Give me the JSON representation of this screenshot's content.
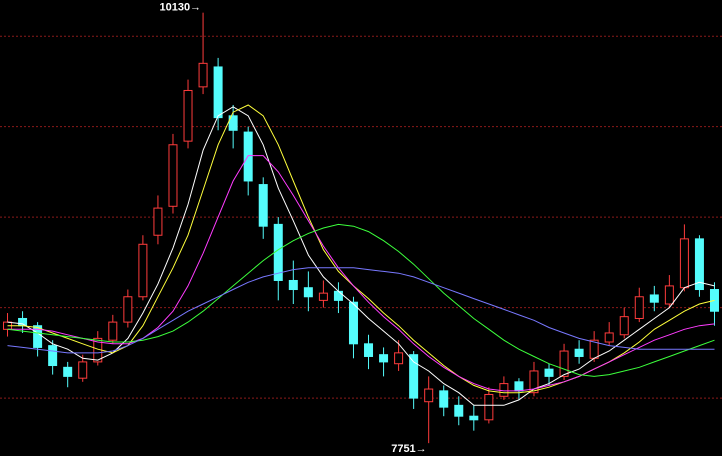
{
  "chart_data": {
    "type": "candlestick",
    "ylim": [
      7680,
      10200
    ],
    "yticks": [
      8000,
      8500,
      9000,
      9500,
      10000
    ],
    "grid": true,
    "up_color": "#ff3c3c",
    "down_color": "#54fcfc",
    "grid_color": "#8b1a1a",
    "candles": [
      [
        8380,
        8470,
        8340,
        8420
      ],
      [
        8440,
        8480,
        8360,
        8400
      ],
      [
        8400,
        8420,
        8230,
        8280
      ],
      [
        8290,
        8320,
        8130,
        8180
      ],
      [
        8170,
        8200,
        8060,
        8120
      ],
      [
        8110,
        8240,
        8090,
        8200
      ],
      [
        8200,
        8370,
        8180,
        8330
      ],
      [
        8320,
        8460,
        8300,
        8420
      ],
      [
        8420,
        8600,
        8390,
        8560
      ],
      [
        8560,
        8900,
        8540,
        8850
      ],
      [
        8900,
        9120,
        8850,
        9050
      ],
      [
        9060,
        9460,
        9020,
        9400
      ],
      [
        9420,
        9760,
        9380,
        9700
      ],
      [
        9720,
        10130,
        9680,
        9850
      ],
      [
        9830,
        9880,
        9480,
        9550
      ],
      [
        9560,
        9620,
        9380,
        9480
      ],
      [
        9470,
        9500,
        9120,
        9200
      ],
      [
        9180,
        9220,
        8880,
        8950
      ],
      [
        8960,
        9000,
        8540,
        8650
      ],
      [
        8650,
        8760,
        8520,
        8600
      ],
      [
        8610,
        8700,
        8480,
        8560
      ],
      [
        8540,
        8650,
        8500,
        8580
      ],
      [
        8590,
        8640,
        8470,
        8540
      ],
      [
        8530,
        8560,
        8220,
        8300
      ],
      [
        8300,
        8350,
        8160,
        8230
      ],
      [
        8240,
        8280,
        8120,
        8200
      ],
      [
        8190,
        8320,
        8150,
        8250
      ],
      [
        8240,
        8260,
        7940,
        8000
      ],
      [
        7980,
        8120,
        7751,
        8050
      ],
      [
        8040,
        8070,
        7900,
        7950
      ],
      [
        7960,
        8010,
        7850,
        7900
      ],
      [
        7900,
        7960,
        7820,
        7880
      ],
      [
        7880,
        8060,
        7860,
        8020
      ],
      [
        8010,
        8120,
        7990,
        8080
      ],
      [
        8090,
        8110,
        7990,
        8040
      ],
      [
        8030,
        8200,
        8010,
        8150
      ],
      [
        8160,
        8190,
        8070,
        8120
      ],
      [
        8120,
        8300,
        8100,
        8260
      ],
      [
        8270,
        8320,
        8190,
        8230
      ],
      [
        8220,
        8370,
        8200,
        8320
      ],
      [
        8310,
        8420,
        8290,
        8360
      ],
      [
        8350,
        8500,
        8330,
        8450
      ],
      [
        8440,
        8610,
        8420,
        8560
      ],
      [
        8570,
        8620,
        8480,
        8530
      ],
      [
        8520,
        8680,
        8500,
        8620
      ],
      [
        8610,
        8960,
        8590,
        8880
      ],
      [
        8880,
        8900,
        8560,
        8600
      ],
      [
        8600,
        8640,
        8400,
        8480
      ]
    ],
    "lines": [
      {
        "color": "#ffffff",
        "values": [
          8420,
          8410,
          8360,
          8300,
          8270,
          8220,
          8210,
          8250,
          8330,
          8470,
          8630,
          8830,
          9070,
          9370,
          9560,
          9610,
          9560,
          9400,
          9160,
          8980,
          8790,
          8670,
          8590,
          8520,
          8440,
          8370,
          8300,
          8200,
          8150,
          8080,
          8030,
          7960,
          7960,
          7960,
          7990,
          8050,
          8080,
          8130,
          8160,
          8220,
          8260,
          8320,
          8380,
          8440,
          8500,
          8610,
          8640,
          8620
        ]
      },
      {
        "color": "#ffff3c",
        "values": [
          8400,
          8400,
          8390,
          8360,
          8330,
          8300,
          8270,
          8250,
          8290,
          8400,
          8560,
          8720,
          8900,
          9150,
          9400,
          9580,
          9620,
          9560,
          9400,
          9200,
          9000,
          8820,
          8700,
          8620,
          8550,
          8470,
          8400,
          8320,
          8250,
          8180,
          8120,
          8070,
          8040,
          8030,
          8030,
          8040,
          8060,
          8090,
          8120,
          8160,
          8200,
          8250,
          8310,
          8380,
          8430,
          8480,
          8520,
          8540
        ]
      },
      {
        "color": "#ff3cff",
        "values": [
          8380,
          8380,
          8380,
          8370,
          8350,
          8330,
          8310,
          8300,
          8300,
          8330,
          8390,
          8480,
          8620,
          8800,
          9000,
          9200,
          9340,
          9340,
          9250,
          9120,
          8980,
          8840,
          8720,
          8620,
          8530,
          8450,
          8380,
          8300,
          8230,
          8170,
          8120,
          8080,
          8050,
          8040,
          8040,
          8050,
          8070,
          8090,
          8120,
          8160,
          8200,
          8240,
          8280,
          8320,
          8350,
          8380,
          8400,
          8410
        ]
      },
      {
        "color": "#3cff3c",
        "values": [
          8380,
          8370,
          8360,
          8350,
          8340,
          8330,
          8320,
          8310,
          8310,
          8320,
          8340,
          8370,
          8420,
          8480,
          8550,
          8620,
          8690,
          8760,
          8820,
          8870,
          8910,
          8940,
          8960,
          8950,
          8920,
          8870,
          8810,
          8740,
          8660,
          8580,
          8510,
          8440,
          8380,
          8320,
          8270,
          8230,
          8190,
          8160,
          8130,
          8120,
          8130,
          8150,
          8170,
          8200,
          8230,
          8260,
          8290,
          8320
        ]
      },
      {
        "color": "#7878ff",
        "values": [
          8290,
          8280,
          8270,
          8260,
          8250,
          8250,
          8250,
          8260,
          8290,
          8330,
          8380,
          8430,
          8480,
          8520,
          8560,
          8600,
          8640,
          8670,
          8690,
          8710,
          8720,
          8720,
          8720,
          8720,
          8710,
          8700,
          8690,
          8670,
          8640,
          8610,
          8580,
          8550,
          8520,
          8490,
          8460,
          8430,
          8390,
          8360,
          8330,
          8310,
          8290,
          8280,
          8270,
          8270,
          8270,
          8270,
          8270,
          8270
        ]
      }
    ],
    "annotations": [
      {
        "text": "10130→"
      },
      {
        "text": "7751→"
      }
    ]
  }
}
